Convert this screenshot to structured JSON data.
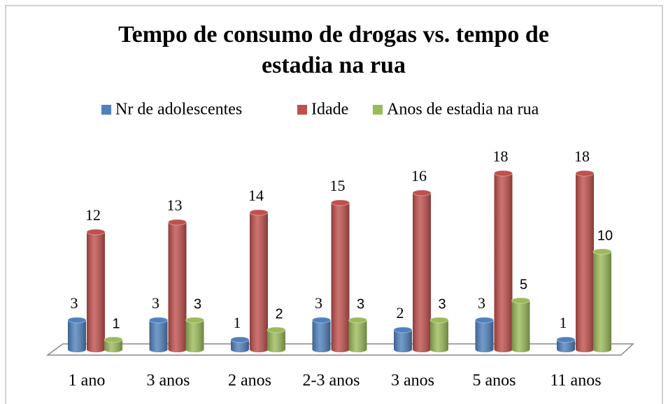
{
  "chart_data": {
    "type": "bar",
    "title": "Tempo de consumo de drogas vs. tempo de estadia na rua",
    "categories": [
      "1 ano",
      "3 anos",
      "2 anos",
      "2-3 anos",
      "3 anos",
      "5 anos",
      "11 anos"
    ],
    "series": [
      {
        "name": "Nr de adolescentes",
        "color": "#4f81bd",
        "values": [
          3,
          3,
          1,
          3,
          2,
          3,
          1
        ]
      },
      {
        "name": "Idade",
        "color": "#c0504d",
        "values": [
          12,
          13,
          14,
          15,
          16,
          18,
          18
        ]
      },
      {
        "name": "Anos de estadia na rua",
        "color": "#9bbb59",
        "values": [
          1,
          3,
          2,
          3,
          3,
          5,
          10
        ]
      }
    ],
    "legend": "top"
  }
}
